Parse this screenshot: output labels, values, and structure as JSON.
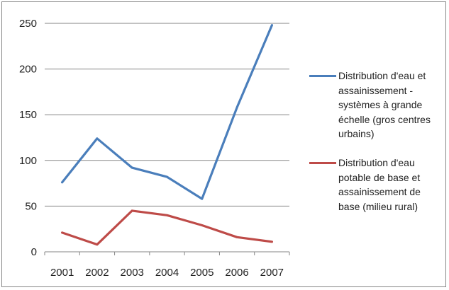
{
  "chart_data": {
    "type": "line",
    "categories": [
      "2001",
      "2002",
      "2003",
      "2004",
      "2005",
      "2006",
      "2007"
    ],
    "yticks": [
      "0",
      "50",
      "100",
      "150",
      "200",
      "250"
    ],
    "ylim": [
      0,
      250
    ],
    "grid": true,
    "legend_position": "right",
    "series": [
      {
        "name": "Distribution d'eau et assainissement - systèmes à grande échelle (gros centres urbains)",
        "color": "#4a7ebb",
        "values": [
          76,
          124,
          92,
          82,
          58,
          158,
          248
        ]
      },
      {
        "name": "Distribution d'eau potable de base et assainissement de base (milieu rural)",
        "color": "#be4b48",
        "values": [
          21,
          8,
          45,
          40,
          29,
          16,
          11
        ]
      }
    ]
  }
}
